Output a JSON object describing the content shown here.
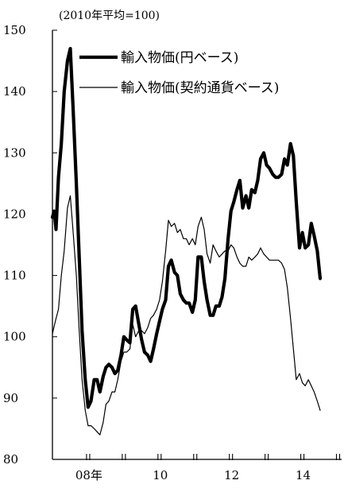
{
  "chart_data": {
    "type": "line",
    "unit_label": "(2010年平均=100)",
    "ylim": [
      80,
      150
    ],
    "yticks": [
      80,
      90,
      100,
      110,
      120,
      130,
      140,
      150
    ],
    "xlim": [
      2007.0,
      2015.1
    ],
    "x_tick_labels": [
      {
        "x": 2008,
        "label": "08年"
      },
      {
        "x": 2010,
        "label": "10"
      },
      {
        "x": 2012,
        "label": "12"
      },
      {
        "x": 2014,
        "label": "14"
      }
    ],
    "year_breaks": [
      2008,
      2009,
      2010,
      2011,
      2012,
      2013,
      2014,
      2015
    ],
    "legend_position": "top-right",
    "series": [
      {
        "name": "輸入物価(円ベース)",
        "color": "#000000",
        "style": "thick",
        "points": [
          [
            2007.0,
            119.5
          ],
          [
            2007.05,
            120.5
          ],
          [
            2007.1,
            117.5
          ],
          [
            2007.17,
            126.0
          ],
          [
            2007.25,
            131.5
          ],
          [
            2007.33,
            140.0
          ],
          [
            2007.42,
            145.0
          ],
          [
            2007.5,
            147.0
          ],
          [
            2007.58,
            137.0
          ],
          [
            2007.67,
            125.0
          ],
          [
            2007.75,
            113.0
          ],
          [
            2007.83,
            101.0
          ],
          [
            2007.92,
            93.0
          ],
          [
            2008.0,
            88.5
          ],
          [
            2008.08,
            89.5
          ],
          [
            2008.17,
            93.0
          ],
          [
            2008.25,
            93.0
          ],
          [
            2008.33,
            91.0
          ],
          [
            2008.42,
            93.5
          ],
          [
            2008.5,
            95.0
          ],
          [
            2008.58,
            95.5
          ],
          [
            2008.67,
            95.0
          ],
          [
            2008.75,
            94.0
          ],
          [
            2008.83,
            94.5
          ],
          [
            2008.92,
            97.0
          ],
          [
            2009.0,
            100.0
          ],
          [
            2009.08,
            99.5
          ],
          [
            2009.17,
            99.0
          ],
          [
            2009.25,
            104.5
          ],
          [
            2009.33,
            105.0
          ],
          [
            2009.42,
            102.0
          ],
          [
            2009.5,
            99.5
          ],
          [
            2009.58,
            97.5
          ],
          [
            2009.67,
            97.0
          ],
          [
            2009.75,
            96.0
          ],
          [
            2009.83,
            98.0
          ],
          [
            2009.92,
            100.5
          ],
          [
            2010.0,
            102.5
          ],
          [
            2010.08,
            104.5
          ],
          [
            2010.17,
            106.0
          ],
          [
            2010.25,
            111.5
          ],
          [
            2010.33,
            112.5
          ],
          [
            2010.42,
            110.5
          ],
          [
            2010.5,
            110.0
          ],
          [
            2010.58,
            107.0
          ],
          [
            2010.67,
            106.0
          ],
          [
            2010.75,
            105.5
          ],
          [
            2010.83,
            105.5
          ],
          [
            2010.92,
            104.0
          ],
          [
            2011.0,
            106.0
          ],
          [
            2011.08,
            113.0
          ],
          [
            2011.17,
            113.0
          ],
          [
            2011.25,
            109.0
          ],
          [
            2011.33,
            106.0
          ],
          [
            2011.42,
            103.5
          ],
          [
            2011.5,
            103.5
          ],
          [
            2011.58,
            105.0
          ],
          [
            2011.67,
            105.0
          ],
          [
            2011.75,
            106.5
          ],
          [
            2011.83,
            109.5
          ],
          [
            2011.92,
            116.0
          ],
          [
            2012.0,
            120.5
          ],
          [
            2012.08,
            122.0
          ],
          [
            2012.17,
            124.0
          ],
          [
            2012.25,
            125.5
          ],
          [
            2012.33,
            121.0
          ],
          [
            2012.42,
            123.0
          ],
          [
            2012.5,
            121.0
          ],
          [
            2012.58,
            124.0
          ],
          [
            2012.67,
            123.5
          ],
          [
            2012.75,
            125.5
          ],
          [
            2012.83,
            129.0
          ],
          [
            2012.92,
            130.0
          ],
          [
            2013.0,
            128.0
          ],
          [
            2013.08,
            127.5
          ],
          [
            2013.17,
            126.5
          ],
          [
            2013.25,
            126.0
          ],
          [
            2013.33,
            126.0
          ],
          [
            2013.42,
            126.5
          ],
          [
            2013.5,
            129.0
          ],
          [
            2013.58,
            128.0
          ],
          [
            2013.67,
            131.5
          ],
          [
            2013.75,
            129.5
          ],
          [
            2013.83,
            122.0
          ],
          [
            2013.92,
            114.5
          ],
          [
            2014.0,
            117.0
          ],
          [
            2014.08,
            114.5
          ],
          [
            2014.17,
            115.0
          ],
          [
            2014.25,
            118.5
          ],
          [
            2014.33,
            116.5
          ],
          [
            2014.42,
            114.0
          ],
          [
            2014.5,
            109.5
          ]
        ]
      },
      {
        "name": "輸入物価(契約通貨ベース)",
        "color": "#000000",
        "style": "thin",
        "points": [
          [
            2007.0,
            100.5
          ],
          [
            2007.08,
            102.5
          ],
          [
            2007.17,
            104.5
          ],
          [
            2007.25,
            110.0
          ],
          [
            2007.33,
            114.0
          ],
          [
            2007.42,
            121.0
          ],
          [
            2007.5,
            123.0
          ],
          [
            2007.58,
            117.0
          ],
          [
            2007.67,
            110.0
          ],
          [
            2007.75,
            101.0
          ],
          [
            2007.83,
            93.0
          ],
          [
            2007.92,
            88.0
          ],
          [
            2008.0,
            85.5
          ],
          [
            2008.08,
            85.5
          ],
          [
            2008.17,
            85.0
          ],
          [
            2008.25,
            84.5
          ],
          [
            2008.33,
            84.0
          ],
          [
            2008.42,
            86.0
          ],
          [
            2008.5,
            89.0
          ],
          [
            2008.58,
            89.5
          ],
          [
            2008.67,
            91.0
          ],
          [
            2008.75,
            91.0
          ],
          [
            2008.83,
            93.0
          ],
          [
            2008.92,
            96.0
          ],
          [
            2009.0,
            97.5
          ],
          [
            2009.08,
            97.5
          ],
          [
            2009.17,
            98.0
          ],
          [
            2009.25,
            102.0
          ],
          [
            2009.33,
            100.0
          ],
          [
            2009.42,
            101.0
          ],
          [
            2009.5,
            101.0
          ],
          [
            2009.58,
            100.5
          ],
          [
            2009.67,
            101.5
          ],
          [
            2009.75,
            103.0
          ],
          [
            2009.83,
            103.5
          ],
          [
            2009.92,
            104.5
          ],
          [
            2010.0,
            106.0
          ],
          [
            2010.08,
            109.0
          ],
          [
            2010.17,
            114.0
          ],
          [
            2010.25,
            119.0
          ],
          [
            2010.33,
            118.0
          ],
          [
            2010.42,
            118.5
          ],
          [
            2010.5,
            117.0
          ],
          [
            2010.58,
            117.5
          ],
          [
            2010.67,
            116.0
          ],
          [
            2010.75,
            116.0
          ],
          [
            2010.83,
            115.0
          ],
          [
            2010.92,
            116.0
          ],
          [
            2011.0,
            115.0
          ],
          [
            2011.08,
            118.0
          ],
          [
            2011.17,
            119.5
          ],
          [
            2011.25,
            117.5
          ],
          [
            2011.33,
            113.5
          ],
          [
            2011.42,
            112.0
          ],
          [
            2011.5,
            115.0
          ],
          [
            2011.58,
            114.0
          ],
          [
            2011.67,
            113.0
          ],
          [
            2011.75,
            113.5
          ],
          [
            2011.83,
            114.0
          ],
          [
            2011.92,
            114.0
          ],
          [
            2012.0,
            115.0
          ],
          [
            2012.08,
            114.5
          ],
          [
            2012.17,
            113.0
          ],
          [
            2012.25,
            112.0
          ],
          [
            2012.33,
            111.5
          ],
          [
            2012.42,
            111.5
          ],
          [
            2012.5,
            113.0
          ],
          [
            2012.58,
            112.5
          ],
          [
            2012.67,
            113.0
          ],
          [
            2012.75,
            113.5
          ],
          [
            2012.83,
            114.5
          ],
          [
            2012.92,
            113.5
          ],
          [
            2013.0,
            113.0
          ],
          [
            2013.08,
            112.5
          ],
          [
            2013.17,
            112.5
          ],
          [
            2013.25,
            112.5
          ],
          [
            2013.33,
            112.5
          ],
          [
            2013.42,
            112.0
          ],
          [
            2013.5,
            111.0
          ],
          [
            2013.58,
            108.0
          ],
          [
            2013.67,
            103.0
          ],
          [
            2013.75,
            98.0
          ],
          [
            2013.83,
            93.0
          ],
          [
            2013.92,
            94.0
          ],
          [
            2014.0,
            92.5
          ],
          [
            2014.08,
            92.0
          ],
          [
            2014.17,
            93.0
          ],
          [
            2014.25,
            92.0
          ],
          [
            2014.33,
            91.0
          ],
          [
            2014.42,
            89.5
          ],
          [
            2014.5,
            88.0
          ]
        ]
      }
    ]
  }
}
